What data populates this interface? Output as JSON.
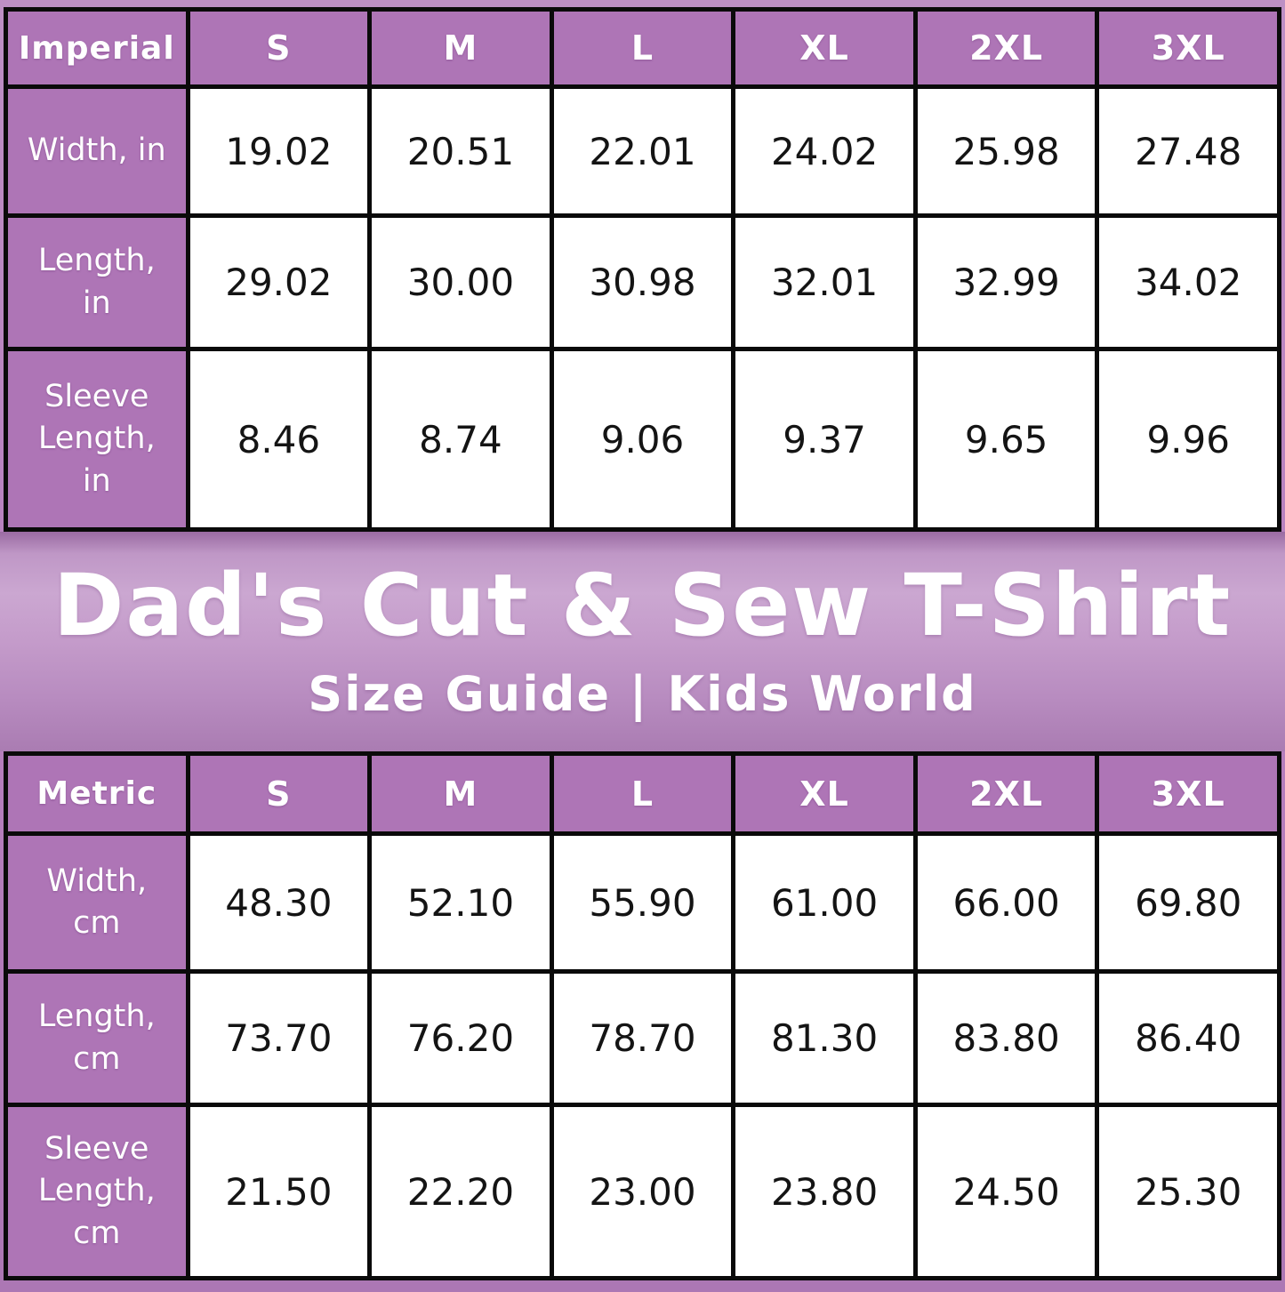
{
  "banner": {
    "title": "Dad's Cut & Sew T-Shirt",
    "subtitle": "Size Guide | Kids World"
  },
  "colors": {
    "header_purple": "#ae75b6",
    "banner_light_purple": "#cba7d1",
    "banner_dark_purple": "#9a6ba2",
    "border_black": "#0a0a0a",
    "cell_white": "#ffffff",
    "text_white": "#ffffff",
    "text_black": "#141414"
  },
  "imperial": {
    "corner_label": "Imperial",
    "columns": [
      "S",
      "M",
      "L",
      "XL",
      "2XL",
      "3XL"
    ],
    "rows": [
      {
        "label": "Width, in",
        "values": [
          "19.02",
          "20.51",
          "22.01",
          "24.02",
          "25.98",
          "27.48"
        ]
      },
      {
        "label": "Length,\nin",
        "values": [
          "29.02",
          "30.00",
          "30.98",
          "32.01",
          "32.99",
          "34.02"
        ]
      },
      {
        "label": "Sleeve\nLength,\nin",
        "values": [
          "8.46",
          "8.74",
          "9.06",
          "9.37",
          "9.65",
          "9.96"
        ]
      }
    ]
  },
  "metric": {
    "corner_label": "Metric",
    "columns": [
      "S",
      "M",
      "L",
      "XL",
      "2XL",
      "3XL"
    ],
    "rows": [
      {
        "label": "Width,\ncm",
        "values": [
          "48.30",
          "52.10",
          "55.90",
          "61.00",
          "66.00",
          "69.80"
        ]
      },
      {
        "label": "Length,\ncm",
        "values": [
          "73.70",
          "76.20",
          "78.70",
          "81.30",
          "83.80",
          "86.40"
        ]
      },
      {
        "label": "Sleeve\nLength,\ncm",
        "values": [
          "21.50",
          "22.20",
          "23.00",
          "23.80",
          "24.50",
          "25.30"
        ]
      }
    ]
  },
  "chart_data": [
    {
      "type": "table",
      "title": "Dad's Cut & Sew T-Shirt Size Guide (Imperial)",
      "unit": "inches",
      "columns": [
        "S",
        "M",
        "L",
        "XL",
        "2XL",
        "3XL"
      ],
      "series": [
        {
          "name": "Width, in",
          "values": [
            19.02,
            20.51,
            22.01,
            24.02,
            25.98,
            27.48
          ]
        },
        {
          "name": "Length, in",
          "values": [
            29.02,
            30.0,
            30.98,
            32.01,
            32.99,
            34.02
          ]
        },
        {
          "name": "Sleeve Length, in",
          "values": [
            8.46,
            8.74,
            9.06,
            9.37,
            9.65,
            9.96
          ]
        }
      ]
    },
    {
      "type": "table",
      "title": "Dad's Cut & Sew T-Shirt Size Guide (Metric)",
      "unit": "centimeters",
      "columns": [
        "S",
        "M",
        "L",
        "XL",
        "2XL",
        "3XL"
      ],
      "series": [
        {
          "name": "Width, cm",
          "values": [
            48.3,
            52.1,
            55.9,
            61.0,
            66.0,
            69.8
          ]
        },
        {
          "name": "Length, cm",
          "values": [
            73.7,
            76.2,
            78.7,
            81.3,
            83.8,
            86.4
          ]
        },
        {
          "name": "Sleeve Length, cm",
          "values": [
            21.5,
            22.2,
            23.0,
            23.8,
            24.5,
            25.3
          ]
        }
      ]
    }
  ]
}
